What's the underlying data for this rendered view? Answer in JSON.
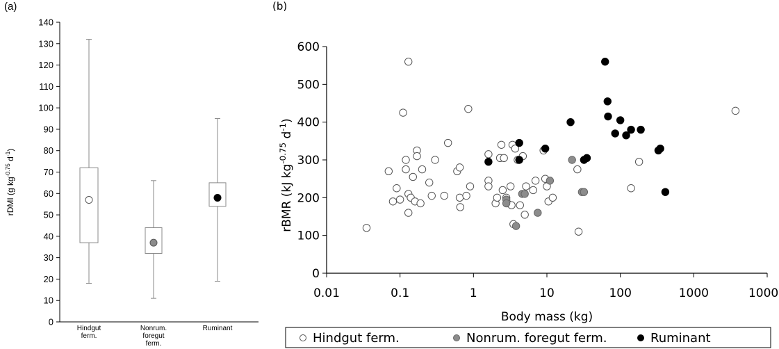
{
  "chart_data": [
    {
      "panel_label": "(a)",
      "type": "boxplot",
      "ylabel": "rDMI (g kg⁻⁰·⁷⁵ d⁻¹)",
      "ylabel_main": "rDMI (g kg",
      "ylabel_sup1": "-0.75",
      "ylabel_mid": " d",
      "ylabel_sup2": "-1",
      "ylabel_end": ")",
      "ylim": [
        0,
        140
      ],
      "yticks": [
        0,
        10,
        20,
        30,
        40,
        50,
        60,
        70,
        80,
        90,
        100,
        110,
        120,
        130,
        140
      ],
      "categories": [
        {
          "label_lines": [
            "Hindgut",
            "ferm."
          ],
          "color": "#ffffff",
          "median": 57,
          "q1": 37,
          "q3": 72,
          "min": 18,
          "max": 132
        },
        {
          "label_lines": [
            "Nonrum.",
            "foregut",
            "ferm."
          ],
          "color": "#8c8c8c",
          "median": 37,
          "q1": 32,
          "q3": 44,
          "min": 11,
          "max": 66
        },
        {
          "label_lines": [
            "Ruminant"
          ],
          "color": "#000000",
          "median": 58,
          "q1": 54,
          "q3": 65,
          "min": 19,
          "max": 95
        }
      ]
    },
    {
      "panel_label": "(b)",
      "type": "scatter",
      "xlabel": "Body mass (kg)",
      "ylabel_main": "rBMR (kJ kg",
      "ylabel_sup1": "-0.75",
      "ylabel_mid": " d",
      "ylabel_sup2": "-1",
      "ylabel_end": ")",
      "x_scale": "log",
      "xlim": [
        0.01,
        10000
      ],
      "xtick_labels": [
        "0.01",
        "0.1",
        "1",
        "10",
        "100",
        "1000",
        "10000"
      ],
      "ylim": [
        0,
        600
      ],
      "yticks": [
        0,
        100,
        200,
        300,
        400,
        500,
        600
      ],
      "legend": {
        "position": "bottom",
        "entries": [
          "Hindgut ferm.",
          "Nonrum. foregut ferm.",
          "Ruminant"
        ]
      },
      "series": [
        {
          "name": "Hindgut ferm.",
          "color": "#ffffff",
          "points": [
            [
              0.035,
              120
            ],
            [
              0.07,
              270
            ],
            [
              0.08,
              190
            ],
            [
              0.09,
              225
            ],
            [
              0.1,
              195
            ],
            [
              0.11,
              425
            ],
            [
              0.12,
              300
            ],
            [
              0.12,
              275
            ],
            [
              0.13,
              560
            ],
            [
              0.13,
              210
            ],
            [
              0.14,
              200
            ],
            [
              0.13,
              160
            ],
            [
              0.15,
              255
            ],
            [
              0.16,
              190
            ],
            [
              0.17,
              325
            ],
            [
              0.17,
              310
            ],
            [
              0.19,
              185
            ],
            [
              0.2,
              275
            ],
            [
              0.25,
              240
            ],
            [
              0.27,
              205
            ],
            [
              0.3,
              300
            ],
            [
              0.4,
              205
            ],
            [
              0.45,
              345
            ],
            [
              0.6,
              270
            ],
            [
              0.65,
              280
            ],
            [
              0.65,
              200
            ],
            [
              0.66,
              175
            ],
            [
              0.8,
              205
            ],
            [
              0.85,
              435
            ],
            [
              0.9,
              230
            ],
            [
              1.6,
              315
            ],
            [
              1.6,
              245
            ],
            [
              1.6,
              230
            ],
            [
              2,
              185
            ],
            [
              2.1,
              200
            ],
            [
              2.3,
              305
            ],
            [
              2.4,
              340
            ],
            [
              2.5,
              220
            ],
            [
              2.6,
              305
            ],
            [
              2.8,
              200
            ],
            [
              2.9,
              185
            ],
            [
              3.2,
              230
            ],
            [
              3.3,
              180
            ],
            [
              3.4,
              340
            ],
            [
              3.5,
              130
            ],
            [
              3.7,
              330
            ],
            [
              4.0,
              300
            ],
            [
              4.3,
              180
            ],
            [
              4.7,
              310
            ],
            [
              5.0,
              155
            ],
            [
              5.2,
              230
            ],
            [
              6.5,
              220
            ],
            [
              7,
              245
            ],
            [
              9,
              325
            ],
            [
              9.5,
              250
            ],
            [
              10,
              230
            ],
            [
              10.5,
              190
            ],
            [
              12,
              200
            ],
            [
              26,
              275
            ],
            [
              27,
              110
            ],
            [
              140,
              225
            ],
            [
              180,
              295
            ],
            [
              3700,
              430
            ]
          ]
        },
        {
          "name": "Nonrum. foregut ferm.",
          "color": "#8c8c8c",
          "points": [
            [
              2.8,
              195
            ],
            [
              2.8,
              185
            ],
            [
              3.8,
              125
            ],
            [
              4.6,
              210
            ],
            [
              5,
              210
            ],
            [
              7.5,
              160
            ],
            [
              11,
              245
            ],
            [
              22,
              300
            ],
            [
              30,
              215
            ],
            [
              32,
              215
            ]
          ]
        },
        {
          "name": "Ruminant",
          "color": "#000000",
          "points": [
            [
              1.6,
              295
            ],
            [
              4.2,
              345
            ],
            [
              4.2,
              300
            ],
            [
              9.5,
              330
            ],
            [
              21,
              400
            ],
            [
              32,
              300
            ],
            [
              35,
              305
            ],
            [
              62,
              560
            ],
            [
              67,
              455
            ],
            [
              68,
              415
            ],
            [
              85,
              370
            ],
            [
              100,
              405
            ],
            [
              120,
              365
            ],
            [
              140,
              380
            ],
            [
              190,
              380
            ],
            [
              330,
              325
            ],
            [
              350,
              330
            ],
            [
              410,
              215
            ]
          ]
        }
      ]
    }
  ]
}
